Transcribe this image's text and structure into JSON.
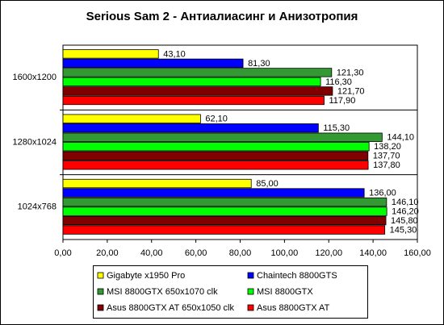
{
  "chart_data": {
    "type": "bar",
    "orientation": "horizontal",
    "title": "Serious Sam 2 - Антиалиасинг и Анизотропия",
    "categories": [
      "1600x1200",
      "1280x1024",
      "1024x768"
    ],
    "series": [
      {
        "name": "Gigabyte x1950 Pro",
        "color": "#ffff00",
        "values": [
          43.1,
          62.1,
          85.0
        ],
        "value_labels": [
          "43,10",
          "62,10",
          "85,00"
        ]
      },
      {
        "name": "Chaintech 8800GTS",
        "color": "#0000ff",
        "values": [
          81.3,
          115.3,
          136.0
        ],
        "value_labels": [
          "81,30",
          "115,30",
          "136,00"
        ]
      },
      {
        "name": "MSI 8800GTX 650x1070 clk",
        "color": "#339933",
        "values": [
          121.3,
          144.1,
          146.1
        ],
        "value_labels": [
          "121,30",
          "144,10",
          "146,10"
        ]
      },
      {
        "name": "MSI 8800GTX",
        "color": "#00ff00",
        "values": [
          116.3,
          138.2,
          146.2
        ],
        "value_labels": [
          "116,30",
          "138,20",
          "146,20"
        ]
      },
      {
        "name": "Asus 8800GTX AT 650x1050 clk",
        "color": "#800000",
        "values": [
          121.7,
          137.7,
          145.8
        ],
        "value_labels": [
          "121,70",
          "137,70",
          "145,80"
        ]
      },
      {
        "name": "Asus 8800GTX AT",
        "color": "#ff0000",
        "values": [
          117.9,
          137.8,
          145.3
        ],
        "value_labels": [
          "117,90",
          "137,80",
          "145,30"
        ]
      }
    ],
    "xlim": [
      0,
      160
    ],
    "xticks": [
      {
        "value": 0,
        "label": "0,00"
      },
      {
        "value": 20,
        "label": "20,00"
      },
      {
        "value": 40,
        "label": "40,00"
      },
      {
        "value": 60,
        "label": "60,00"
      },
      {
        "value": 80,
        "label": "80,00"
      },
      {
        "value": 100,
        "label": "100,00"
      },
      {
        "value": 120,
        "label": "120,00"
      },
      {
        "value": 140,
        "label": "140,00"
      },
      {
        "value": 160,
        "label": "160,00"
      }
    ],
    "legend": "bottom"
  }
}
